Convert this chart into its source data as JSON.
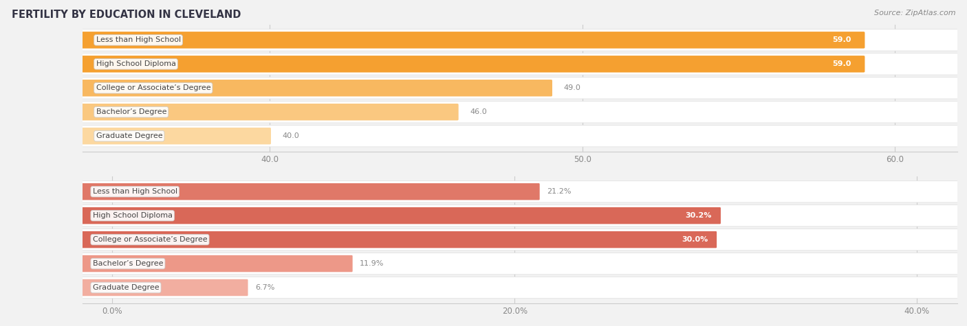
{
  "title": "FERTILITY BY EDUCATION IN CLEVELAND",
  "source": "Source: ZipAtlas.com",
  "top_chart": {
    "categories": [
      "Less than High School",
      "High School Diploma",
      "College or Associate’s Degree",
      "Bachelor’s Degree",
      "Graduate Degree"
    ],
    "values": [
      59.0,
      59.0,
      49.0,
      46.0,
      40.0
    ],
    "value_labels": [
      "59.0",
      "59.0",
      "49.0",
      "46.0",
      "40.0"
    ],
    "xlim": [
      34.0,
      62.0
    ],
    "xticks": [
      40.0,
      50.0,
      60.0
    ],
    "xticklabels": [
      "40.0",
      "50.0",
      "60.0"
    ],
    "bar_colors": [
      "#F5A030",
      "#F5A030",
      "#F8B860",
      "#FAC880",
      "#FCD8A0"
    ],
    "threshold_inside": 54.0
  },
  "bottom_chart": {
    "categories": [
      "Less than High School",
      "High School Diploma",
      "College or Associate’s Degree",
      "Bachelor’s Degree",
      "Graduate Degree"
    ],
    "values": [
      21.2,
      30.2,
      30.0,
      11.9,
      6.7
    ],
    "value_labels": [
      "21.2%",
      "30.2%",
      "30.0%",
      "11.9%",
      "6.7%"
    ],
    "xlim": [
      -1.5,
      42.0
    ],
    "xticks": [
      0.0,
      20.0,
      40.0
    ],
    "xticklabels": [
      "0.0%",
      "20.0%",
      "40.0%"
    ],
    "bar_colors": [
      "#E07868",
      "#D96858",
      "#D96858",
      "#ED9888",
      "#F2AEA0"
    ],
    "threshold_inside": 24.0
  },
  "bg_color": "#F2F2F2",
  "bar_row_bg": "#FFFFFF",
  "label_fontsize": 8.0,
  "value_fontsize": 8.0,
  "title_fontsize": 10.5,
  "title_color": "#333344",
  "source_fontsize": 8.0,
  "tick_fontsize": 8.5,
  "tick_color": "#888888",
  "grid_color": "#CCCCCC",
  "label_text_color": "#444444",
  "label_box_color": "#FFFFFF",
  "value_color_inside": "#FFFFFF",
  "value_color_outside": "#888888"
}
